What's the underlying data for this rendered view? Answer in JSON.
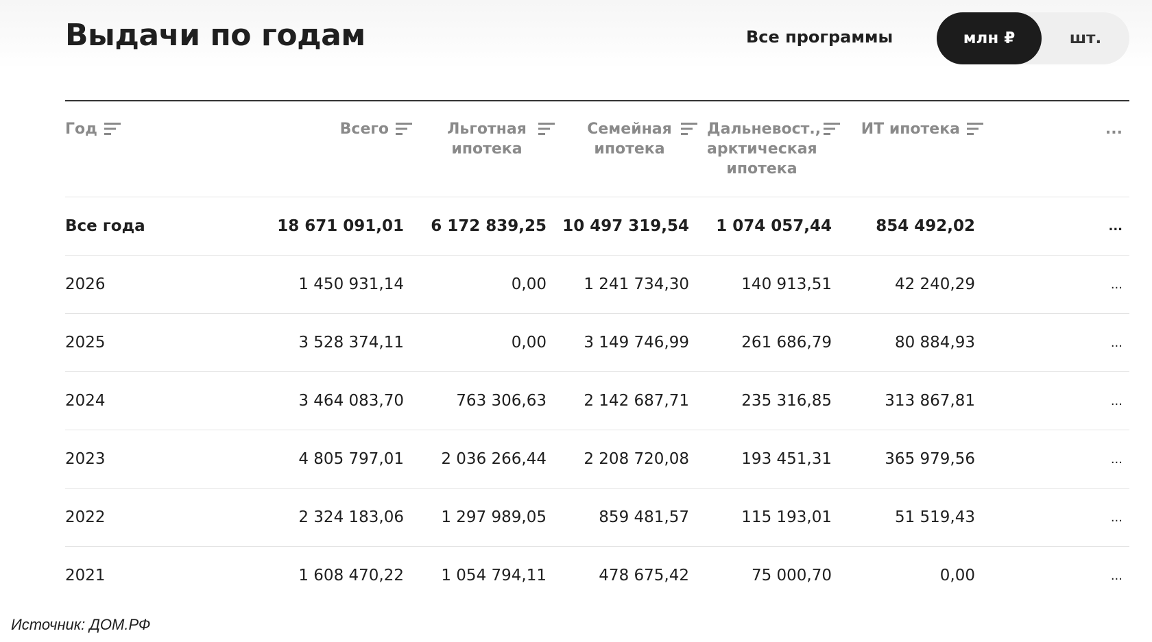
{
  "header": {
    "title": "Выдачи по годам",
    "filter": "Все программы",
    "toggle": [
      "млн ₽",
      "шт."
    ]
  },
  "table": {
    "columns": [
      "Год",
      "Всего",
      "Льготная ипотека",
      "Семейная ипотека",
      "Дальневост., арктическая ипотека",
      "ИТ ипотека",
      "..."
    ],
    "rows": [
      [
        "Все года",
        "18 671 091,01",
        "6 172 839,25",
        "10 497 319,54",
        "1 074 057,44",
        "854 492,02",
        "..."
      ],
      [
        "2026",
        "1 450 931,14",
        "0,00",
        "1 241 734,30",
        "140 913,51",
        "42 240,29",
        "..."
      ],
      [
        "2025",
        "3 528 374,11",
        "0,00",
        "3 149 746,99",
        "261 686,79",
        "80 884,93",
        "..."
      ],
      [
        "2024",
        "3 464 083,70",
        "763 306,63",
        "2 142 687,71",
        "235 316,85",
        "313 867,81",
        "..."
      ],
      [
        "2023",
        "4 805 797,01",
        "2 036 266,44",
        "2 208 720,08",
        "193 451,31",
        "365 979,56",
        "..."
      ],
      [
        "2022",
        "2 324 183,06",
        "1 297 989,05",
        "859 481,57",
        "115 193,01",
        "51 519,43",
        "..."
      ],
      [
        "2021",
        "1 608 470,22",
        "1 054 794,11",
        "478 675,42",
        "75 000,70",
        "0,00",
        "..."
      ]
    ]
  },
  "source": "Источник: ДОМ.РФ"
}
